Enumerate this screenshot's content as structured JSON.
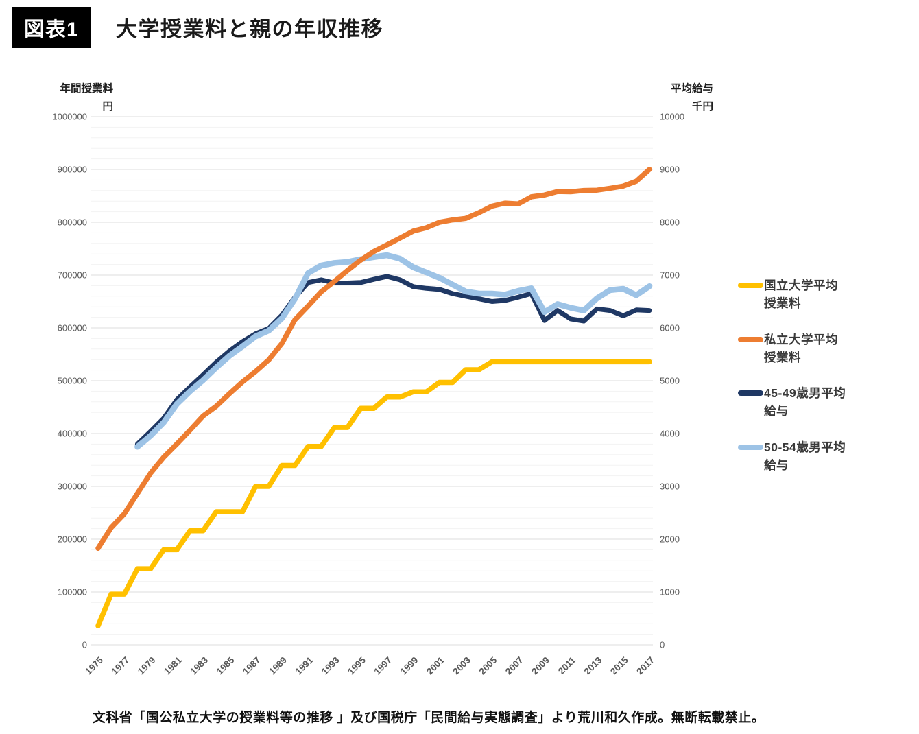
{
  "header": {
    "badge": "図表1",
    "title": "大学授業料と親の年収推移"
  },
  "footer": {
    "credit": "文科省「国公私立大学の授業料等の推移 」及び国税庁「民間給与実態調査」より荒川和久作成。無断転載禁止。"
  },
  "chart_data": {
    "type": "line",
    "title": "大学授業料と親の年収推移",
    "x_range": [
      1975,
      2017
    ],
    "x_ticks": [
      1975,
      1977,
      1979,
      1981,
      1983,
      1985,
      1987,
      1989,
      1991,
      1993,
      1995,
      1997,
      1999,
      2001,
      2003,
      2005,
      2007,
      2009,
      2011,
      2013,
      2015,
      2017
    ],
    "left_axis": {
      "title_lines": [
        "年間授業料",
        "円"
      ],
      "min": 0,
      "max": 1000000,
      "tick_step": 100000
    },
    "right_axis": {
      "title_lines": [
        "平均給与",
        "千円"
      ],
      "min": 0,
      "max": 10000,
      "tick_step": 1000
    },
    "grid": {
      "horizontal_major": true,
      "minor_step_left": 20000,
      "vertical": false
    },
    "legend_position": "right",
    "series": [
      {
        "name": "国立大学平均授業料",
        "label_lines": [
          "国立大学平均",
          "授業料"
        ],
        "color": "#FFC000",
        "axis": "left",
        "start_year": 1975,
        "values": [
          36000,
          96000,
          96000,
          144000,
          144000,
          180000,
          180000,
          216000,
          216000,
          252000,
          252000,
          252000,
          300000,
          300000,
          339600,
          339600,
          375600,
          375600,
          411600,
          411600,
          447600,
          447600,
          469200,
          469200,
          478800,
          478800,
          496800,
          496800,
          520800,
          520800,
          535800,
          535800,
          535800,
          535800,
          535800,
          535800,
          535800,
          535800,
          535800,
          535800,
          535800,
          535800,
          535800
        ]
      },
      {
        "name": "私立大学平均授業料",
        "label_lines": [
          "私立大学平均",
          "授業料"
        ],
        "color": "#ED7D31",
        "axis": "left",
        "start_year": 1975,
        "values": [
          182677,
          221844,
          248066,
          286568,
          325198,
          355156,
          380253,
          406261,
          433200,
          451722,
          475325,
          497826,
          517395,
          539591,
          570584,
          615486,
          641608,
          668460,
          688046,
          708847,
          728365,
          744733,
          757158,
          770024,
          783298,
          789659,
          799973,
          804367,
          807413,
          817952,
          830583,
          836297,
          834751,
          848178,
          851621,
          858265,
          857763,
          860266,
          860772,
          864384,
          868447,
          877735,
          900093
        ]
      },
      {
        "name": "45-49歳男平均給与",
        "label_lines": [
          "45-49歳男平均",
          "給与"
        ],
        "color": "#1F3864",
        "axis": "right",
        "start_year": 1978,
        "values": [
          3800,
          4040,
          4290,
          4640,
          4880,
          5110,
          5350,
          5560,
          5740,
          5890,
          5990,
          6240,
          6580,
          6860,
          6910,
          6850,
          6850,
          6860,
          6920,
          6975,
          6910,
          6780,
          6750,
          6730,
          6650,
          6600,
          6550,
          6500,
          6520,
          6580,
          6650,
          6140,
          6330,
          6170,
          6130,
          6360,
          6330,
          6230,
          6340,
          6330
        ]
      },
      {
        "name": "50-54歳男平均給与",
        "label_lines": [
          "50-54歳男平均",
          "給与"
        ],
        "color": "#9DC3E6",
        "axis": "right",
        "start_year": 1978,
        "values": [
          3750,
          3960,
          4210,
          4560,
          4800,
          5010,
          5250,
          5470,
          5650,
          5840,
          5950,
          6180,
          6550,
          7040,
          7180,
          7230,
          7250,
          7300,
          7340,
          7377,
          7310,
          7150,
          7050,
          6950,
          6820,
          6690,
          6650,
          6650,
          6630,
          6700,
          6750,
          6300,
          6450,
          6380,
          6330,
          6560,
          6715,
          6740,
          6620,
          6790
        ]
      }
    ]
  }
}
